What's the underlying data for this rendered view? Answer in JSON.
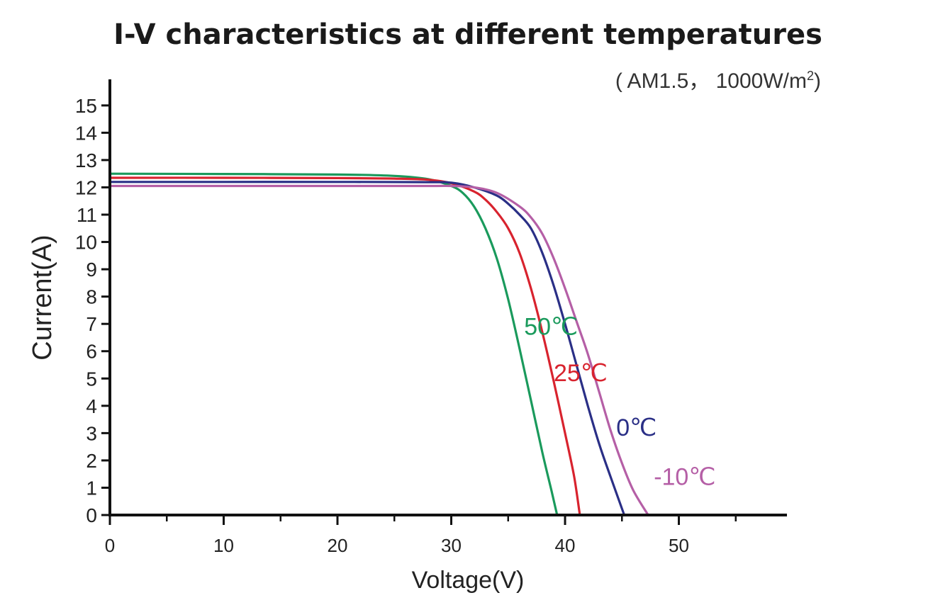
{
  "chart_data": {
    "type": "line",
    "title": "I-V characteristics at different temperatures",
    "subtitle_prefix": "( AM1.5， 1000W/m",
    "subtitle_sup": "2",
    "subtitle_suffix": ")",
    "xlabel": "Voltage(V)",
    "ylabel": "Current(A)",
    "xlim": [
      0,
      59.5
    ],
    "ylim": [
      0,
      15.8
    ],
    "x_ticks": [
      0,
      10,
      20,
      30,
      40,
      50
    ],
    "y_ticks": [
      0,
      1,
      2,
      3,
      4,
      5,
      6,
      7,
      8,
      9,
      10,
      11,
      12,
      13,
      14,
      15
    ],
    "grid": false,
    "series": [
      {
        "name": "50℃",
        "color": "#1a9a5c",
        "points": [
          [
            0,
            12.5
          ],
          [
            10,
            12.49
          ],
          [
            20,
            12.47
          ],
          [
            25,
            12.42
          ],
          [
            28,
            12.3
          ],
          [
            30,
            12.05
          ],
          [
            31,
            11.8
          ],
          [
            32,
            11.3
          ],
          [
            33,
            10.5
          ],
          [
            34,
            9.4
          ],
          [
            35,
            7.9
          ],
          [
            36,
            6.1
          ],
          [
            37,
            4.2
          ],
          [
            38,
            2.3
          ],
          [
            38.8,
            0.9
          ],
          [
            39.3,
            0
          ]
        ]
      },
      {
        "name": "25℃",
        "color": "#d8232e",
        "points": [
          [
            0,
            12.35
          ],
          [
            10,
            12.35
          ],
          [
            20,
            12.34
          ],
          [
            25,
            12.32
          ],
          [
            28,
            12.28
          ],
          [
            30,
            12.15
          ],
          [
            32,
            11.85
          ],
          [
            33,
            11.55
          ],
          [
            34,
            11.1
          ],
          [
            35,
            10.5
          ],
          [
            36,
            9.6
          ],
          [
            37,
            8.3
          ],
          [
            38,
            6.7
          ],
          [
            39,
            4.9
          ],
          [
            40,
            3.0
          ],
          [
            40.8,
            1.4
          ],
          [
            41.3,
            0
          ]
        ]
      },
      {
        "name": "0℃",
        "color": "#2a2f86",
        "points": [
          [
            0,
            12.2
          ],
          [
            10,
            12.2
          ],
          [
            20,
            12.2
          ],
          [
            28,
            12.19
          ],
          [
            30,
            12.17
          ],
          [
            32,
            12.0
          ],
          [
            34,
            11.7
          ],
          [
            35,
            11.4
          ],
          [
            36,
            11.0
          ],
          [
            37,
            10.5
          ],
          [
            38,
            9.6
          ],
          [
            39,
            8.4
          ],
          [
            40,
            7.0
          ],
          [
            41,
            5.5
          ],
          [
            42,
            4.0
          ],
          [
            43,
            2.6
          ],
          [
            44,
            1.4
          ],
          [
            45.2,
            0
          ]
        ]
      },
      {
        "name": "-10℃",
        "color": "#b55fa6",
        "points": [
          [
            0,
            12.05
          ],
          [
            10,
            12.05
          ],
          [
            20,
            12.05
          ],
          [
            28,
            12.05
          ],
          [
            30,
            12.05
          ],
          [
            32,
            12.0
          ],
          [
            34,
            11.8
          ],
          [
            36,
            11.3
          ],
          [
            37,
            10.9
          ],
          [
            38,
            10.3
          ],
          [
            39,
            9.4
          ],
          [
            40,
            8.3
          ],
          [
            41,
            7.1
          ],
          [
            42,
            5.9
          ],
          [
            43,
            4.5
          ],
          [
            44,
            3.1
          ],
          [
            45,
            1.9
          ],
          [
            46,
            0.9
          ],
          [
            47.3,
            0
          ]
        ]
      }
    ]
  }
}
